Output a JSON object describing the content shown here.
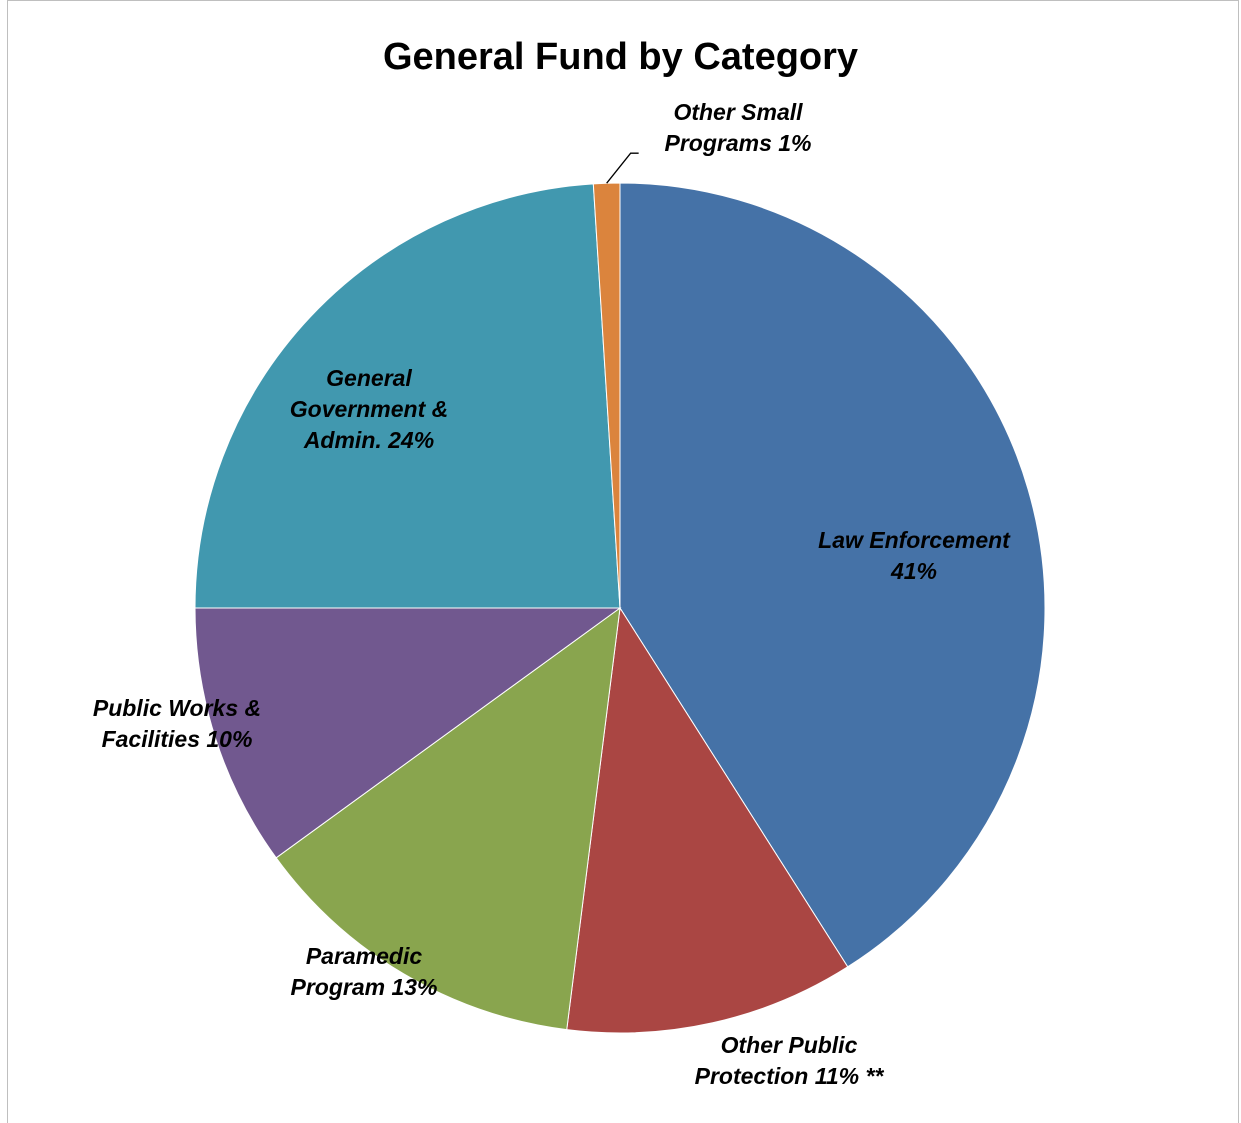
{
  "chart_data": {
    "type": "pie",
    "title": "General Fund by Category",
    "slices": [
      {
        "label_lines": [
          "Law Enforcement",
          "41%"
        ],
        "value": 41,
        "color": "#4572A7"
      },
      {
        "label_lines": [
          "Other Public",
          "Protection 11% **"
        ],
        "value": 11,
        "color": "#AA4643"
      },
      {
        "label_lines": [
          "Paramedic",
          "Program 13%"
        ],
        "value": 13,
        "color": "#89A54E"
      },
      {
        "label_lines": [
          "Public Works &",
          "Facilities 10%"
        ],
        "value": 10,
        "color": "#71588F"
      },
      {
        "label_lines": [
          "General",
          "Government &",
          "Admin. 24%"
        ],
        "value": 24,
        "color": "#4198AF"
      },
      {
        "label_lines": [
          "Other Small",
          "Programs 1%"
        ],
        "value": 1,
        "color": "#DB843D"
      }
    ],
    "start": "12 o'clock",
    "direction": "clockwise",
    "legend": "none"
  }
}
